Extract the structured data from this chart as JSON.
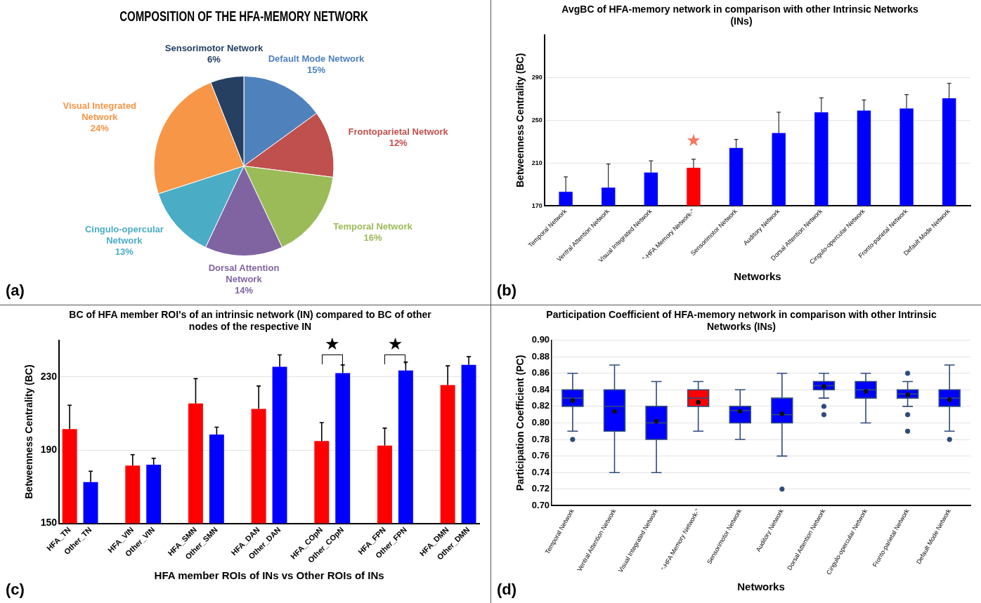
{
  "chart_data": [
    {
      "type": "pie",
      "title": "COMPOSITION OF THE HFA-MEMORY NETWORK",
      "categories": [
        "Default Mode Network",
        "Frontoparietal Network",
        "Temporal Network",
        "Dorsal Attention Network",
        "Cingulo-opercular Network",
        "Visual Integrated Network",
        "Sensorimotor Network"
      ],
      "values": [
        15,
        12,
        16,
        14,
        13,
        24,
        6
      ],
      "value_labels": [
        "15%",
        "12%",
        "16%",
        "14%",
        "13%",
        "24%",
        "6%"
      ],
      "colors": [
        "#4f81bd",
        "#c0504d",
        "#9bbb59",
        "#8064a2",
        "#4bacc6",
        "#f79646",
        "#254061"
      ],
      "annotations": [
        "(a)"
      ]
    },
    {
      "type": "bar",
      "title": "AvgBC of HFA-memory network in comparison with other Intrinsic Networks  (INs)",
      "xlabel": "Networks",
      "ylabel": "Betweenness Centrality (BC)",
      "categories": [
        "Temporal Network",
        "Ventral Attention Network",
        "Visual Integrated Network",
        "\"-HFA Memory Network-\"",
        "Sensorimotor Network",
        "Auditory Network",
        "Dorsal Attention Network",
        "Cingulo-opercular Network",
        "Fronto-parietal Network",
        "Default Mode Network"
      ],
      "values": [
        183,
        187,
        201,
        205.5,
        224,
        238,
        257.5,
        259,
        261,
        270.5
      ],
      "errors": [
        [
          183,
          197
        ],
        [
          187,
          209
        ],
        [
          201,
          212
        ],
        [
          205.5,
          213.5
        ],
        [
          224,
          232
        ],
        [
          238,
          257.5
        ],
        [
          257.5,
          271
        ],
        [
          259,
          269
        ],
        [
          261,
          274
        ],
        [
          270.5,
          284.5
        ]
      ],
      "colors": [
        "#0000ff",
        "#0000ff",
        "#0000ff",
        "#ff0000",
        "#0000ff",
        "#0000ff",
        "#0000ff",
        "#0000ff",
        "#0000ff",
        "#0000ff"
      ],
      "ylim": [
        170,
        330
      ],
      "yticks": [
        170,
        210,
        250,
        290
      ],
      "grid": "y",
      "annotations": [
        "(b)",
        "★"
      ]
    },
    {
      "type": "bar",
      "title": "BC of HFA member ROI's of an intrinsic network (IN) compared to BC of other nodes of the respective IN",
      "xlabel": "HFA member ROIs of INs vs Other ROIs of INs",
      "ylabel": "Betweenness Centrality (BC)",
      "categories": [
        "HFA_TN",
        "Other_TN",
        null,
        "HFA_VIN",
        "Other_VIN",
        null,
        "HFA_SMN",
        "Other_SMN",
        null,
        "HFA_DAN",
        "Other_DAN",
        null,
        "HFA_COpN",
        "Other_COpN",
        null,
        "HFA_FPN",
        "Other_FPN",
        null,
        "HFA_DMN",
        "Other_DMN"
      ],
      "values": [
        201.5,
        172.5,
        null,
        181.5,
        182,
        null,
        215.5,
        198.5,
        null,
        212.5,
        235.5,
        null,
        195,
        232,
        null,
        192.5,
        233.5,
        null,
        225.5,
        236.5
      ],
      "errors": [
        [
          201.5,
          214.5
        ],
        [
          172.5,
          178.5
        ],
        null,
        [
          181.5,
          187.5
        ],
        [
          182,
          185.5
        ],
        null,
        [
          215.5,
          229
        ],
        [
          198.5,
          202.5
        ],
        null,
        [
          212.5,
          225
        ],
        [
          235.5,
          242
        ],
        null,
        [
          195,
          205
        ],
        [
          232,
          236.5
        ],
        null,
        [
          192.5,
          202
        ],
        [
          233.5,
          238
        ],
        null,
        [
          225.5,
          236
        ],
        [
          236.5,
          241
        ]
      ],
      "colors": [
        "#ff0000",
        "#0000ff",
        null,
        "#ff0000",
        "#0000ff",
        null,
        "#ff0000",
        "#0000ff",
        null,
        "#ff0000",
        "#0000ff",
        null,
        "#ff0000",
        "#0000ff",
        null,
        "#ff0000",
        "#0000ff",
        null,
        "#ff0000",
        "#0000ff"
      ],
      "ylim": [
        150,
        250
      ],
      "yticks": [
        150,
        190,
        230
      ],
      "grid": "y",
      "annotations": [
        "(c)",
        "★",
        "★"
      ]
    },
    {
      "type": "box",
      "title": "Participation Coefficient of HFA-memory network in comparison with other Intrinsic Networks (INs)",
      "xlabel": "Networks",
      "ylabel": "Participation Coefficient (PC)",
      "categories": [
        "Temporal Network",
        "Ventral Attention Network",
        "Visual Integrated Network",
        "\"-HFA Memory Network-\"",
        "Sensorimotor Network",
        "Auditory Network",
        "Dorsal Attention Network",
        "Cingulo-opercular Network",
        "Fronto-parietal Network",
        "Default Mode Network"
      ],
      "boxes": [
        {
          "low": 0.79,
          "q1": 0.82,
          "median": 0.83,
          "q3": 0.84,
          "high": 0.86,
          "mean": 0.827,
          "outliers": [
            0.78
          ]
        },
        {
          "low": 0.74,
          "q1": 0.79,
          "median": 0.82,
          "q3": 0.84,
          "high": 0.87,
          "mean": 0.814
        },
        {
          "low": 0.74,
          "q1": 0.78,
          "median": 0.8,
          "q3": 0.82,
          "high": 0.85,
          "mean": 0.802
        },
        {
          "low": 0.79,
          "q1": 0.82,
          "median": 0.83,
          "q3": 0.84,
          "high": 0.85,
          "mean": 0.825
        },
        {
          "low": 0.78,
          "q1": 0.8,
          "median": 0.815,
          "q3": 0.82,
          "high": 0.84,
          "mean": 0.814
        },
        {
          "low": 0.76,
          "q1": 0.8,
          "median": 0.81,
          "q3": 0.83,
          "high": 0.86,
          "mean": 0.811,
          "outliers": [
            0.72
          ]
        },
        {
          "low": 0.83,
          "q1": 0.84,
          "median": 0.845,
          "q3": 0.85,
          "high": 0.86,
          "mean": 0.844,
          "outliers": [
            0.82,
            0.81
          ]
        },
        {
          "low": 0.8,
          "q1": 0.83,
          "median": 0.84,
          "q3": 0.85,
          "high": 0.86,
          "mean": 0.838
        },
        {
          "low": 0.82,
          "q1": 0.83,
          "median": 0.835,
          "q3": 0.84,
          "high": 0.85,
          "mean": 0.834,
          "outliers": [
            0.86,
            0.81,
            0.79
          ]
        },
        {
          "low": 0.79,
          "q1": 0.82,
          "median": 0.83,
          "q3": 0.84,
          "high": 0.87,
          "mean": 0.828,
          "outliers": [
            0.78
          ]
        }
      ],
      "colors": [
        "#0000ff",
        "#0000ff",
        "#0000ff",
        "#ff0000",
        "#0000ff",
        "#0000ff",
        "#0000ff",
        "#0000ff",
        "#0000ff",
        "#0000ff"
      ],
      "ylim": [
        0.7,
        0.9
      ],
      "yticks": [
        {
          "value": 0.7,
          "label": "0.70"
        },
        {
          "value": 0.72,
          "label": "0.72"
        },
        {
          "value": 0.74,
          "label": "0.74"
        },
        {
          "value": 0.76,
          "label": "0.76"
        },
        {
          "value": 0.78,
          "label": "0.78"
        },
        {
          "value": 0.8,
          "label": "0.80"
        },
        {
          "value": 0.82,
          "label": "0.82"
        },
        {
          "value": 0.84,
          "label": "0.84"
        },
        {
          "value": 0.86,
          "label": "0.86"
        },
        {
          "value": 0.88,
          "label": "0.88"
        },
        {
          "value": 0.9,
          "label": "0.90"
        }
      ],
      "grid": "y",
      "annotations": [
        "(d)"
      ]
    }
  ]
}
